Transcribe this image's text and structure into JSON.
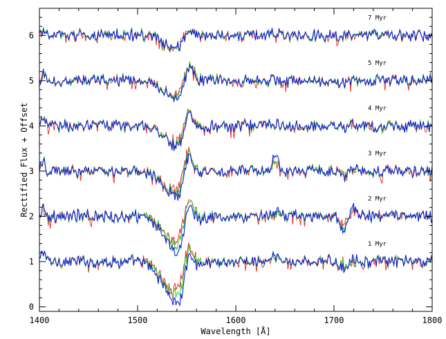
{
  "chart_data": {
    "type": "line",
    "xlabel": "Wavelength [Å]",
    "ylabel": "Rectified Flux + Offset",
    "xlim": [
      1400,
      1800
    ],
    "ylim": [
      -0.1,
      6.6
    ],
    "x_ticks": [
      1400,
      1500,
      1600,
      1700,
      1800
    ],
    "x_tick_labels": [
      "1400",
      "1500",
      "1600",
      "1700",
      "1800"
    ],
    "y_ticks": [
      0,
      1,
      2,
      3,
      4,
      5,
      6
    ],
    "y_tick_labels": [
      "0",
      "1",
      "2",
      "3",
      "4",
      "5",
      "6"
    ],
    "grid": false,
    "legend": "none",
    "series_colors": [
      "#e8201c",
      "#22c41e",
      "#0b1fd6"
    ],
    "panels": [
      {
        "label": "1 Myr",
        "offset": 1,
        "p_cygni_depth": [
          0.55,
          0.6,
          0.72
        ],
        "p_cygni_peak": [
          0.45,
          0.5,
          0.55
        ],
        "he_ii_1640": 0.12,
        "n_iv_1718": [
          0.05,
          0.08,
          0.15
        ]
      },
      {
        "label": "2 Myr",
        "offset": 2,
        "p_cygni_depth": [
          0.45,
          0.5,
          0.6
        ],
        "p_cygni_peak": [
          0.5,
          0.55,
          0.6
        ],
        "he_ii_1640": 0.18,
        "n_iv_1718": [
          0.15,
          0.25,
          0.3
        ]
      },
      {
        "label": "3 Myr",
        "offset": 3,
        "p_cygni_depth": [
          0.35,
          0.4,
          0.45
        ],
        "p_cygni_peak": [
          0.5,
          0.55,
          0.6
        ],
        "he_ii_1640": 0.4,
        "n_iv_1718": [
          0.08,
          0.1,
          0.15
        ]
      },
      {
        "label": "4 Myr",
        "offset": 4,
        "p_cygni_depth": [
          0.3,
          0.32,
          0.35
        ],
        "p_cygni_peak": [
          0.4,
          0.45,
          0.5
        ],
        "he_ii_1640": 0.08,
        "n_iv_1718": [
          0.03,
          0.04,
          0.05
        ]
      },
      {
        "label": "5 Myr",
        "offset": 5,
        "p_cygni_depth": [
          0.25,
          0.27,
          0.3
        ],
        "p_cygni_peak": [
          0.35,
          0.4,
          0.45
        ],
        "he_ii_1640": 0.05,
        "n_iv_1718": [
          0.02,
          0.02,
          0.03
        ]
      },
      {
        "label": "7 Myr",
        "offset": 6,
        "p_cygni_depth": [
          0.25,
          0.22,
          0.2
        ],
        "p_cygni_peak": [
          0.15,
          0.15,
          0.2
        ],
        "he_ii_1640": 0.03,
        "n_iv_1718": [
          0.01,
          0.01,
          0.01
        ]
      }
    ]
  }
}
